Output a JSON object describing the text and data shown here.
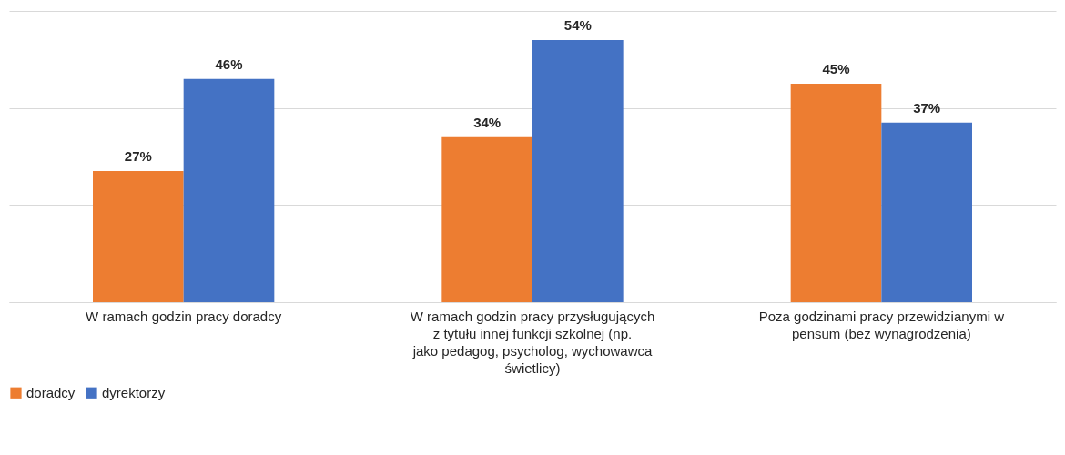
{
  "chart_data": {
    "type": "bar",
    "categories": [
      "W ramach godzin pracy doradcy",
      "W ramach godzin pracy przysługujących z tytułu innej funkcji szkolnej (np. jako pedagog, psycholog, wychowawca świetlicy)",
      "Poza godzinami pracy przewidzianymi w pensum (bez wynagrodzenia)"
    ],
    "series": [
      {
        "name": "doradcy",
        "color": "#ed7d31",
        "values": [
          27,
          34,
          45
        ],
        "value_labels": [
          "27%",
          "34%",
          "45%"
        ]
      },
      {
        "name": "dyrektorzy",
        "color": "#4472c4",
        "values": [
          46,
          54,
          37
        ],
        "value_labels": [
          "46%",
          "54%",
          "37%"
        ]
      }
    ],
    "ylim": [
      0,
      60
    ],
    "yticks": [
      {
        "value": 0,
        "label": null
      },
      {
        "value": 20,
        "label": null
      },
      {
        "value": 40,
        "label": null
      },
      {
        "value": 60,
        "label": null
      }
    ],
    "tick_labels": "x",
    "grid": "y",
    "legend": "bottom"
  }
}
